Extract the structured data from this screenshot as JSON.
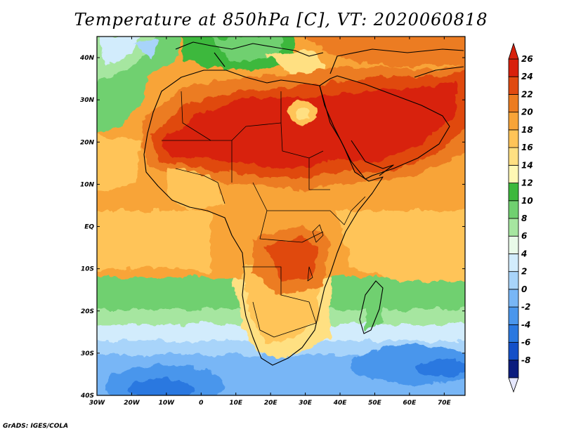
{
  "title": "Temperature at 850hPa [C], VT: 2020060818",
  "credit": "GrADS: IGES/COLA",
  "map": {
    "region": "Africa",
    "lon_range": [
      -30,
      76
    ],
    "lat_range": [
      -40,
      45
    ],
    "lon_labels": [
      "30W",
      "20W",
      "10W",
      "0",
      "10E",
      "20E",
      "30E",
      "40E",
      "50E",
      "60E",
      "70E"
    ],
    "lat_labels": [
      "40S",
      "30S",
      "20S",
      "10S",
      "EQ",
      "10N",
      "20N",
      "30N",
      "40N"
    ]
  },
  "colorbar": {
    "labels": [
      "-8",
      "-6",
      "-4",
      "-2",
      "0",
      "2",
      "4",
      "6",
      "8",
      "10",
      "12",
      "14",
      "16",
      "18",
      "20",
      "22",
      "24",
      "26"
    ],
    "colors": [
      "#0c1d7e",
      "#1450c8",
      "#2a78e0",
      "#4a96ec",
      "#78b6f6",
      "#a8d4fa",
      "#d2ecfc",
      "#e8fae8",
      "#a6e6a0",
      "#70d070",
      "#3cb83c",
      "#fff8b4",
      "#ffe082",
      "#ffc458",
      "#f8a438",
      "#ec7c20",
      "#e04a10",
      "#d8200c"
    ]
  }
}
